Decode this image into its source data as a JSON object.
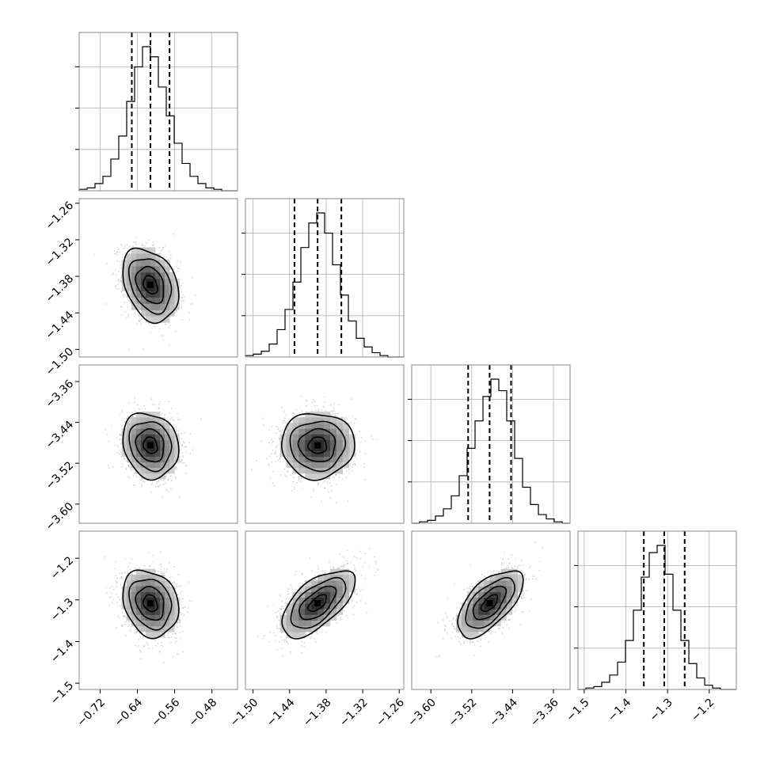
{
  "chart_data": {
    "type": "corner",
    "title": "",
    "n_params": 4,
    "params": [
      {
        "name": "",
        "ticks": [
          -0.72,
          -0.64,
          -0.56,
          -0.48
        ],
        "tick_labels": [
          "−0.72",
          "−0.64",
          "−0.56",
          "−0.48"
        ],
        "range": [
          -0.765,
          -0.425
        ],
        "quantiles": [
          -0.652,
          -0.612,
          -0.571
        ]
      },
      {
        "name": "",
        "ticks": [
          -1.5,
          -1.44,
          -1.38,
          -1.32,
          -1.26
        ],
        "tick_labels": [
          "−1.50",
          "−1.44",
          "−1.38",
          "−1.32",
          "−1.26"
        ],
        "range": [
          -1.5125,
          -1.2525
        ],
        "quantiles": [
          -1.432,
          -1.394,
          -1.355
        ]
      },
      {
        "name": "",
        "ticks": [
          -3.6,
          -3.52,
          -3.44,
          -3.36
        ],
        "tick_labels": [
          "−3.60",
          "−3.52",
          "−3.44",
          "−3.36"
        ],
        "range": [
          -3.6375,
          -3.3275
        ],
        "quantiles": [
          -3.527,
          -3.485,
          -3.443
        ]
      },
      {
        "name": "",
        "ticks": [
          -1.5,
          -1.4,
          -1.3,
          -1.2
        ],
        "tick_labels": [
          "−1.5",
          "−1.4",
          "−1.3",
          "−1.2"
        ],
        "range": [
          -1.515,
          -1.135
        ],
        "quantiles": [
          -1.357,
          -1.308,
          -1.259
        ]
      }
    ],
    "histograms": [
      [
        0.01,
        0.02,
        0.05,
        0.1,
        0.22,
        0.38,
        0.62,
        0.86,
        1.0,
        0.93,
        0.72,
        0.52,
        0.33,
        0.19,
        0.1,
        0.05,
        0.02,
        0.01,
        0.0,
        0.0
      ],
      [
        0.01,
        0.02,
        0.04,
        0.09,
        0.19,
        0.33,
        0.52,
        0.76,
        0.93,
        1.0,
        0.86,
        0.64,
        0.43,
        0.25,
        0.13,
        0.07,
        0.03,
        0.01,
        0.0,
        0.0
      ],
      [
        0.0,
        0.01,
        0.02,
        0.05,
        0.1,
        0.19,
        0.33,
        0.52,
        0.71,
        0.88,
        1.0,
        0.92,
        0.71,
        0.45,
        0.25,
        0.13,
        0.06,
        0.03,
        0.01,
        0.0
      ],
      [
        0.0,
        0.01,
        0.02,
        0.05,
        0.1,
        0.19,
        0.34,
        0.55,
        0.78,
        0.95,
        1.0,
        0.8,
        0.55,
        0.34,
        0.18,
        0.08,
        0.03,
        0.01,
        0.0,
        0.0
      ]
    ],
    "hist_bins": 20,
    "joint_distributions": [
      {
        "pair": [
          1,
          0
        ],
        "mean": [
          -0.612,
          -1.394
        ],
        "sd": [
          0.03,
          0.03
        ],
        "rho": -0.3
      },
      {
        "pair": [
          2,
          0
        ],
        "mean": [
          -0.612,
          -3.485
        ],
        "sd": [
          0.03,
          0.032
        ],
        "rho": -0.15
      },
      {
        "pair": [
          2,
          1
        ],
        "mean": [
          -1.394,
          -3.485
        ],
        "sd": [
          0.03,
          0.032
        ],
        "rho": 0.0
      },
      {
        "pair": [
          3,
          0
        ],
        "mean": [
          -0.612,
          -1.308
        ],
        "sd": [
          0.03,
          0.04
        ],
        "rho": -0.2
      },
      {
        "pair": [
          3,
          1
        ],
        "mean": [
          -1.394,
          -1.308
        ],
        "sd": [
          0.03,
          0.04
        ],
        "rho": 0.62
      },
      {
        "pair": [
          3,
          2
        ],
        "mean": [
          -3.485,
          -1.308
        ],
        "sd": [
          0.032,
          0.04
        ],
        "rho": 0.62
      }
    ],
    "contour_levels_sigma": [
      0.5,
      1.0,
      1.5,
      2.0
    ],
    "grid": true,
    "colors": {
      "line": "#000000",
      "points": "#888888",
      "grid": "#b0b0b0",
      "frame": "#888888"
    }
  }
}
